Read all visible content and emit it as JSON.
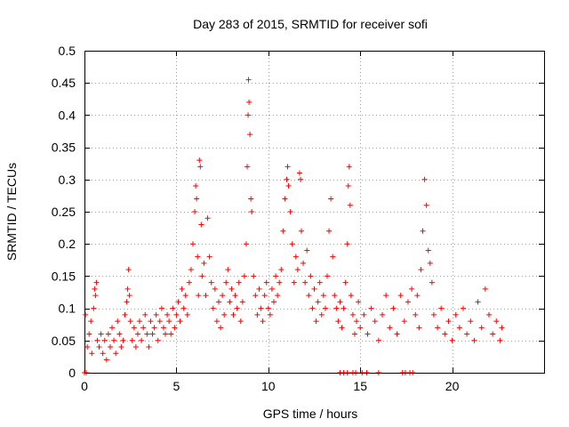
{
  "chart_data": {
    "type": "scatter",
    "title": "Day 283 of 2015, SRMTID for receiver sofi",
    "xlabel": "GPS time / hours",
    "ylabel": "SRMTID / TECUs",
    "xlim": [
      0,
      25
    ],
    "ylim": [
      0,
      0.5
    ],
    "x_ticks": [
      0,
      5,
      10,
      15,
      20
    ],
    "x_tick_labels": [
      "0",
      "5",
      "10",
      "15",
      "20"
    ],
    "y_ticks": [
      0,
      0.05,
      0.1,
      0.15,
      0.2,
      0.25,
      0.3,
      0.35,
      0.4,
      0.45,
      0.5
    ],
    "y_tick_labels": [
      "0",
      "0.05",
      "0.1",
      "0.15",
      "0.2",
      "0.25",
      "0.3",
      "0.35",
      "0.4",
      "0.45",
      "0.5"
    ],
    "grid": true,
    "marker": "+",
    "marker_color": "#ff0000",
    "series": [
      {
        "name": "SRMTID",
        "points": [
          [
            0.0,
            0.0
          ],
          [
            0.05,
            0.09
          ],
          [
            0.1,
            0.0
          ],
          [
            0.15,
            0.04
          ],
          [
            0.25,
            0.06
          ],
          [
            0.35,
            0.08
          ],
          [
            0.4,
            0.03
          ],
          [
            0.5,
            0.1
          ],
          [
            0.55,
            0.13
          ],
          [
            0.6,
            0.12
          ],
          [
            0.65,
            0.14
          ],
          [
            0.7,
            0.05
          ],
          [
            0.8,
            0.04
          ],
          [
            0.9,
            0.06
          ],
          [
            1.0,
            0.03
          ],
          [
            1.1,
            0.05
          ],
          [
            1.2,
            0.02
          ],
          [
            1.3,
            0.06
          ],
          [
            1.4,
            0.04
          ],
          [
            1.5,
            0.07
          ],
          [
            1.6,
            0.05
          ],
          [
            1.7,
            0.03
          ],
          [
            1.8,
            0.08
          ],
          [
            1.9,
            0.06
          ],
          [
            2.0,
            0.04
          ],
          [
            2.1,
            0.05
          ],
          [
            2.2,
            0.09
          ],
          [
            2.3,
            0.11
          ],
          [
            2.35,
            0.13
          ],
          [
            2.4,
            0.16
          ],
          [
            2.45,
            0.12
          ],
          [
            2.5,
            0.08
          ],
          [
            2.6,
            0.05
          ],
          [
            2.7,
            0.07
          ],
          [
            2.8,
            0.04
          ],
          [
            2.9,
            0.06
          ],
          [
            3.0,
            0.08
          ],
          [
            3.1,
            0.05
          ],
          [
            3.2,
            0.07
          ],
          [
            3.3,
            0.09
          ],
          [
            3.4,
            0.06
          ],
          [
            3.5,
            0.04
          ],
          [
            3.6,
            0.08
          ],
          [
            3.7,
            0.06
          ],
          [
            3.8,
            0.07
          ],
          [
            3.9,
            0.09
          ],
          [
            4.0,
            0.05
          ],
          [
            4.1,
            0.08
          ],
          [
            4.2,
            0.1
          ],
          [
            4.3,
            0.07
          ],
          [
            4.4,
            0.06
          ],
          [
            4.5,
            0.09
          ],
          [
            4.6,
            0.08
          ],
          [
            4.7,
            0.06
          ],
          [
            4.8,
            0.1
          ],
          [
            4.9,
            0.07
          ],
          [
            5.0,
            0.09
          ],
          [
            5.1,
            0.11
          ],
          [
            5.2,
            0.08
          ],
          [
            5.3,
            0.13
          ],
          [
            5.4,
            0.1
          ],
          [
            5.5,
            0.12
          ],
          [
            5.6,
            0.09
          ],
          [
            5.7,
            0.14
          ],
          [
            5.8,
            0.16
          ],
          [
            5.9,
            0.2
          ],
          [
            6.0,
            0.25
          ],
          [
            6.05,
            0.29
          ],
          [
            6.1,
            0.27
          ],
          [
            6.15,
            0.18
          ],
          [
            6.2,
            0.12
          ],
          [
            6.25,
            0.33
          ],
          [
            6.3,
            0.32
          ],
          [
            6.35,
            0.23
          ],
          [
            6.4,
            0.15
          ],
          [
            6.5,
            0.17
          ],
          [
            6.6,
            0.12
          ],
          [
            6.7,
            0.24
          ],
          [
            6.8,
            0.18
          ],
          [
            6.9,
            0.14
          ],
          [
            7.0,
            0.1
          ],
          [
            7.1,
            0.13
          ],
          [
            7.2,
            0.08
          ],
          [
            7.3,
            0.11
          ],
          [
            7.4,
            0.07
          ],
          [
            7.5,
            0.12
          ],
          [
            7.6,
            0.09
          ],
          [
            7.7,
            0.14
          ],
          [
            7.8,
            0.16
          ],
          [
            7.9,
            0.11
          ],
          [
            8.0,
            0.13
          ],
          [
            8.1,
            0.09
          ],
          [
            8.2,
            0.12
          ],
          [
            8.3,
            0.1
          ],
          [
            8.4,
            0.14
          ],
          [
            8.5,
            0.08
          ],
          [
            8.6,
            0.11
          ],
          [
            8.7,
            0.15
          ],
          [
            8.8,
            0.2
          ],
          [
            8.85,
            0.32
          ],
          [
            8.9,
            0.4
          ],
          [
            8.92,
            0.455
          ],
          [
            8.95,
            0.42
          ],
          [
            9.0,
            0.37
          ],
          [
            9.05,
            0.27
          ],
          [
            9.1,
            0.25
          ],
          [
            9.2,
            0.15
          ],
          [
            9.3,
            0.12
          ],
          [
            9.4,
            0.09
          ],
          [
            9.5,
            0.13
          ],
          [
            9.6,
            0.1
          ],
          [
            9.7,
            0.08
          ],
          [
            9.8,
            0.12
          ],
          [
            9.9,
            0.14
          ],
          [
            10.0,
            0.1
          ],
          [
            10.1,
            0.09
          ],
          [
            10.2,
            0.13
          ],
          [
            10.3,
            0.11
          ],
          [
            10.4,
            0.15
          ],
          [
            10.5,
            0.12
          ],
          [
            10.6,
            0.14
          ],
          [
            10.7,
            0.16
          ],
          [
            10.8,
            0.22
          ],
          [
            10.9,
            0.27
          ],
          [
            11.0,
            0.3
          ],
          [
            11.05,
            0.32
          ],
          [
            11.1,
            0.29
          ],
          [
            11.2,
            0.25
          ],
          [
            11.3,
            0.2
          ],
          [
            11.4,
            0.14
          ],
          [
            11.5,
            0.18
          ],
          [
            11.6,
            0.16
          ],
          [
            11.7,
            0.31
          ],
          [
            11.75,
            0.3
          ],
          [
            11.8,
            0.22
          ],
          [
            11.9,
            0.17
          ],
          [
            12.0,
            0.14
          ],
          [
            12.1,
            0.19
          ],
          [
            12.2,
            0.12
          ],
          [
            12.3,
            0.15
          ],
          [
            12.4,
            0.1
          ],
          [
            12.5,
            0.13
          ],
          [
            12.6,
            0.08
          ],
          [
            12.7,
            0.11
          ],
          [
            12.8,
            0.14
          ],
          [
            12.9,
            0.09
          ],
          [
            13.0,
            0.12
          ],
          [
            13.1,
            0.1
          ],
          [
            13.2,
            0.15
          ],
          [
            13.3,
            0.22
          ],
          [
            13.4,
            0.27
          ],
          [
            13.5,
            0.18
          ],
          [
            13.6,
            0.12
          ],
          [
            13.7,
            0.1
          ],
          [
            13.8,
            0.08
          ],
          [
            13.9,
            0.11
          ],
          [
            14.0,
            0.07
          ],
          [
            14.1,
            0.1
          ],
          [
            14.2,
            0.14
          ],
          [
            14.3,
            0.2
          ],
          [
            14.35,
            0.29
          ],
          [
            14.4,
            0.32
          ],
          [
            14.45,
            0.26
          ],
          [
            14.5,
            0.12
          ],
          [
            14.6,
            0.09
          ],
          [
            14.7,
            0.06
          ],
          [
            14.8,
            0.08
          ],
          [
            14.9,
            0.11
          ],
          [
            15.0,
            0.07
          ],
          [
            15.2,
            0.09
          ],
          [
            15.4,
            0.06
          ],
          [
            15.6,
            0.1
          ],
          [
            15.8,
            0.08
          ],
          [
            16.0,
            0.05
          ],
          [
            16.2,
            0.09
          ],
          [
            16.4,
            0.12
          ],
          [
            16.6,
            0.07
          ],
          [
            16.8,
            0.1
          ],
          [
            17.0,
            0.06
          ],
          [
            17.2,
            0.12
          ],
          [
            17.4,
            0.08
          ],
          [
            17.6,
            0.11
          ],
          [
            17.8,
            0.13
          ],
          [
            18.0,
            0.09
          ],
          [
            18.1,
            0.12
          ],
          [
            18.2,
            0.07
          ],
          [
            18.3,
            0.16
          ],
          [
            18.4,
            0.22
          ],
          [
            18.5,
            0.3
          ],
          [
            18.6,
            0.26
          ],
          [
            18.7,
            0.19
          ],
          [
            18.8,
            0.17
          ],
          [
            18.9,
            0.14
          ],
          [
            19.0,
            0.09
          ],
          [
            19.2,
            0.07
          ],
          [
            19.4,
            0.1
          ],
          [
            19.6,
            0.06
          ],
          [
            19.8,
            0.08
          ],
          [
            20.0,
            0.05
          ],
          [
            20.2,
            0.09
          ],
          [
            20.4,
            0.07
          ],
          [
            20.6,
            0.1
          ],
          [
            20.8,
            0.06
          ],
          [
            21.0,
            0.08
          ],
          [
            21.2,
            0.05
          ],
          [
            21.4,
            0.11
          ],
          [
            21.6,
            0.07
          ],
          [
            21.8,
            0.13
          ],
          [
            22.0,
            0.09
          ],
          [
            22.2,
            0.06
          ],
          [
            22.4,
            0.08
          ],
          [
            22.6,
            0.05
          ],
          [
            22.7,
            0.07
          ],
          [
            13.9,
            0.0
          ],
          [
            14.1,
            0.0
          ],
          [
            14.3,
            0.0
          ],
          [
            14.6,
            0.0
          ],
          [
            14.75,
            0.0
          ],
          [
            15.1,
            0.0
          ],
          [
            15.35,
            0.0
          ],
          [
            16.0,
            0.0
          ],
          [
            17.3,
            0.0
          ],
          [
            17.45,
            0.0
          ],
          [
            17.7,
            0.0
          ],
          [
            17.85,
            0.0
          ]
        ]
      }
    ]
  }
}
